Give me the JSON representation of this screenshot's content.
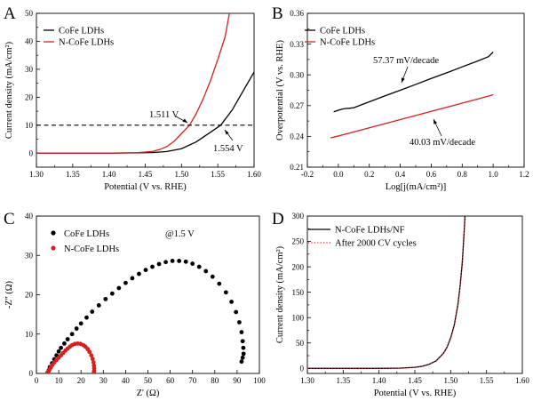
{
  "chart_data": [
    {
      "panel": "A",
      "type": "line",
      "xlabel": "Potential (V vs. RHE)",
      "ylabel": "Current density (mA/cm²)",
      "xlim": [
        1.3,
        1.6
      ],
      "ylim": [
        -5,
        50
      ],
      "xticks": [
        "1.30",
        "1.35",
        "1.40",
        "1.45",
        "1.50",
        "1.55",
        "1.60"
      ],
      "yticks": [
        "0",
        "10",
        "20",
        "30",
        "40",
        "50"
      ],
      "legend_position": "top-left",
      "series": [
        {
          "name": "CoFe LDHs",
          "color": "#000000",
          "x": [
            1.3,
            1.4,
            1.46,
            1.48,
            1.5,
            1.52,
            1.54,
            1.554,
            1.57,
            1.58,
            1.59,
            1.6
          ],
          "y": [
            0,
            0,
            0.2,
            0.6,
            1.6,
            4.0,
            7.5,
            10,
            15.5,
            20,
            24.5,
            29
          ]
        },
        {
          "name": "N-CoFe LDHs",
          "color": "#d42020",
          "x": [
            1.3,
            1.4,
            1.44,
            1.46,
            1.47,
            1.48,
            1.49,
            1.5,
            1.511,
            1.52,
            1.53,
            1.54,
            1.55,
            1.56,
            1.566
          ],
          "y": [
            0,
            0,
            0.2,
            0.6,
            1.3,
            2.4,
            4.3,
            7.0,
            10,
            14,
            19.5,
            26,
            33.5,
            41.5,
            50
          ]
        },
        {
          "name": "",
          "style": "dashed",
          "color": "#000000",
          "x": [
            1.3,
            1.6
          ],
          "y": [
            10,
            10
          ]
        }
      ],
      "annotations": [
        {
          "text": "1.511 V",
          "x": 1.511,
          "y": 10
        },
        {
          "text": "1.554 V",
          "x": 1.554,
          "y": 10
        }
      ]
    },
    {
      "panel": "B",
      "type": "line",
      "xlabel": "Log[j(mA/cm²)]",
      "ylabel": "Overpotential (V vs. RHE)",
      "xlim": [
        -0.2,
        1.2
      ],
      "ylim": [
        0.21,
        0.36
      ],
      "xticks": [
        "-0.2",
        "0.0",
        "0.2",
        "0.4",
        "0.6",
        "0.8",
        "1.0",
        "1.2"
      ],
      "yticks": [
        "0.21",
        "0.24",
        "0.27",
        "0.30",
        "0.33",
        "0.36"
      ],
      "legend_position": "top-left",
      "series": [
        {
          "name": "CoFe LDHs",
          "color": "#000000",
          "x": [
            -0.03,
            0.0,
            0.03,
            0.05,
            0.07,
            0.1,
            0.2,
            0.3,
            0.4,
            0.5,
            0.6,
            0.7,
            0.8,
            0.9,
            0.97,
            1.0
          ],
          "y": [
            0.264,
            0.2655,
            0.2668,
            0.2672,
            0.2674,
            0.268,
            0.2737,
            0.2795,
            0.285,
            0.2907,
            0.2965,
            0.302,
            0.3078,
            0.3135,
            0.3178,
            0.3222
          ]
        },
        {
          "name": "N-CoFe LDHs",
          "color": "#d42020",
          "x": [
            -0.05,
            0.0,
            0.1,
            0.2,
            0.3,
            0.4,
            0.5,
            0.6,
            0.7,
            0.8,
            0.9,
            1.0
          ],
          "y": [
            0.2385,
            0.2404,
            0.2444,
            0.2484,
            0.2524,
            0.2564,
            0.2604,
            0.2644,
            0.2684,
            0.2724,
            0.2764,
            0.2806
          ]
        }
      ],
      "annotations": [
        {
          "text": "57.37 mV/decade",
          "x": 0.4,
          "y": 0.285
        },
        {
          "text": "40.03 mV/decade",
          "x": 0.6,
          "y": 0.264
        }
      ]
    },
    {
      "panel": "C",
      "type": "scatter",
      "xlabel": "Z' (Ω)",
      "ylabel": "-Z'' (Ω)",
      "xlim": [
        0,
        100
      ],
      "ylim": [
        0,
        40
      ],
      "xticks": [
        "0",
        "10",
        "20",
        "30",
        "40",
        "50",
        "60",
        "70",
        "80",
        "90",
        "100"
      ],
      "yticks": [
        "0",
        "10",
        "20",
        "30",
        "40"
      ],
      "legend_position": "top-left",
      "note": "@1.5 V",
      "series": [
        {
          "name": "CoFe LDHs",
          "color": "#000000",
          "x": [
            5,
            5.5,
            6,
            7,
            8,
            9,
            10,
            11,
            12.5,
            14,
            16,
            18,
            20,
            22.5,
            25,
            28,
            31,
            34,
            37,
            40,
            43,
            46,
            49,
            52,
            55,
            58,
            61,
            64,
            67,
            70,
            73,
            76,
            79,
            82,
            85,
            87.5,
            89.5,
            91,
            92,
            92.5,
            92.8,
            92.9,
            92.5,
            92
          ],
          "y": [
            0.2,
            0.8,
            1.6,
            2.6,
            3.6,
            4.6,
            5.6,
            6.5,
            7.6,
            8.7,
            10,
            11.4,
            12.7,
            14.2,
            15.7,
            17.3,
            18.9,
            20.3,
            21.7,
            23,
            24.2,
            25.3,
            26.3,
            27.1,
            27.8,
            28.3,
            28.6,
            28.6,
            28.4,
            27.9,
            27.1,
            26,
            24.6,
            22.8,
            20.6,
            18.2,
            15.6,
            13,
            10.5,
            8.2,
            6.5,
            5,
            4,
            3
          ]
        },
        {
          "name": "N-CoFe LDHs",
          "color": "#d42020",
          "x": [
            5,
            5.5,
            6,
            6.5,
            7.2,
            8,
            9,
            10,
            11,
            12,
            13,
            14,
            15,
            16,
            17.2,
            18.5,
            19.8,
            21,
            22,
            23,
            23.8,
            24.6,
            25.2,
            25.6,
            25.8,
            25.9,
            25.9,
            25.8
          ],
          "y": [
            0.2,
            0.6,
            1.1,
            1.6,
            2.2,
            2.8,
            3.4,
            4.0,
            4.6,
            5.2,
            5.8,
            6.3,
            6.8,
            7.2,
            7.5,
            7.6,
            7.5,
            7.2,
            6.8,
            6.2,
            5.5,
            4.6,
            3.7,
            2.8,
            2.0,
            1.3,
            0.7,
            0.3
          ]
        }
      ]
    },
    {
      "panel": "D",
      "type": "line",
      "xlabel": "Potential (V vs. RHE)",
      "ylabel": "Current density (mA/cm²)",
      "xlim": [
        1.3,
        1.6
      ],
      "ylim": [
        -10,
        300
      ],
      "xticks": [
        "1.30",
        "1.35",
        "1.40",
        "1.45",
        "1.50",
        "1.55",
        "1.60"
      ],
      "yticks": [
        "0",
        "50",
        "100",
        "150",
        "200",
        "250",
        "300"
      ],
      "legend_position": "top-left",
      "series": [
        {
          "name": "N-CoFe LDHs/NF",
          "color": "#000000",
          "x": [
            1.3,
            1.4,
            1.43,
            1.45,
            1.46,
            1.47,
            1.48,
            1.49,
            1.495,
            1.5,
            1.505,
            1.51,
            1.513,
            1.516,
            1.518,
            1.52
          ],
          "y": [
            0,
            0,
            0.5,
            2,
            4,
            8,
            15,
            30,
            42,
            60,
            85,
            125,
            160,
            205,
            250,
            300
          ]
        },
        {
          "name": "After 2000 CV cycles",
          "style": "dotted",
          "color": "#d42020",
          "x": [
            1.3,
            1.4,
            1.43,
            1.45,
            1.46,
            1.47,
            1.48,
            1.49,
            1.495,
            1.5,
            1.505,
            1.51,
            1.513,
            1.516,
            1.518,
            1.52
          ],
          "y": [
            0,
            0,
            0.5,
            2,
            4,
            8,
            15,
            30,
            42,
            60,
            85,
            125,
            160,
            205,
            250,
            300
          ]
        }
      ]
    }
  ],
  "panels": {
    "a": {
      "letter": "A",
      "legend": [
        "CoFe LDHs",
        "N-CoFe LDHs"
      ],
      "ann1": "1.511 V",
      "ann2": "1.554 V"
    },
    "b": {
      "letter": "B",
      "legend": [
        "CoFe LDHs",
        "N-CoFe LDHs"
      ],
      "ann1": "57.37 mV/decade",
      "ann2": "40.03 mV/decade"
    },
    "c": {
      "letter": "C",
      "legend": [
        "CoFe LDHs",
        "N-CoFe LDHs"
      ],
      "note": "@1.5 V"
    },
    "d": {
      "letter": "D",
      "legend": [
        "N-CoFe LDHs/NF",
        "After 2000 CV cycles"
      ]
    }
  },
  "colors": {
    "black_series": "#000000",
    "red_series": "#d42020"
  }
}
